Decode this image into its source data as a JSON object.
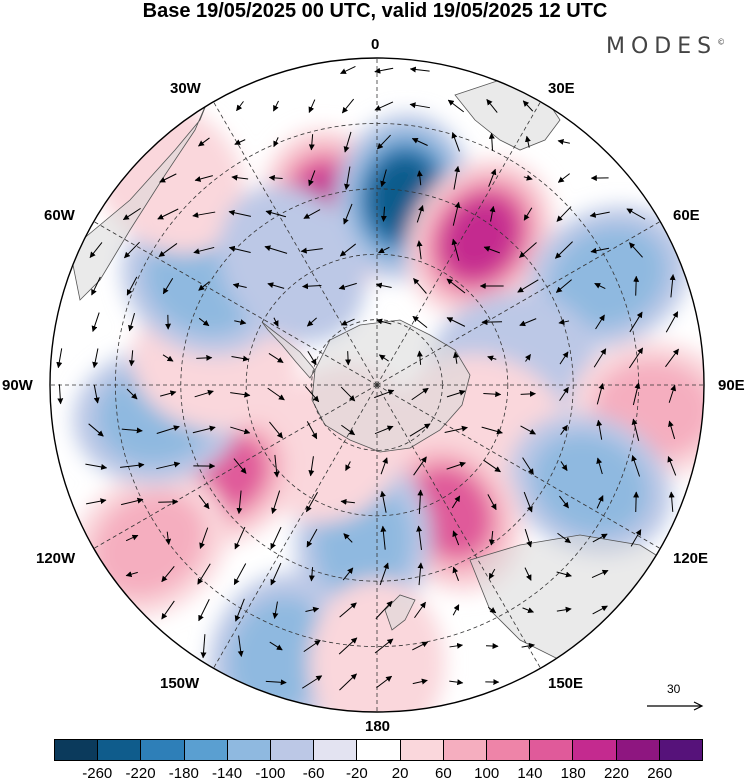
{
  "title": "Base 19/05/2025 00 UTC, valid 19/05/2025 12 UTC",
  "brand": "MODES",
  "brand_mark": "©",
  "longitude_labels": {
    "n0": "0",
    "w30": "30W",
    "e30": "30E",
    "w60": "60W",
    "e60": "60E",
    "w90": "90W",
    "e90": "90E",
    "w120": "120W",
    "e120": "120E",
    "w150": "150W",
    "e150": "150E",
    "s180": "180"
  },
  "reference_vector": "30",
  "colorbar": {
    "colors": [
      "#0b3a5c",
      "#0f5c8c",
      "#2e7fb8",
      "#5a9fd1",
      "#8fb9e0",
      "#bcc8e6",
      "#e3e3f1",
      "#ffffff",
      "#fad7dc",
      "#f5aebf",
      "#ee84a8",
      "#e05a9a",
      "#c42a8f",
      "#8e1680",
      "#56127a"
    ],
    "tick_labels": [
      "-260",
      "-220",
      "-180",
      "-140",
      "-100",
      "-60",
      "-20",
      "20",
      "60",
      "100",
      "140",
      "180",
      "220",
      "260"
    ]
  },
  "map_features": {
    "projection": "south polar stereographic",
    "graticule": "dashed",
    "blobs": [
      {
        "lon": 345,
        "r": 0.55,
        "value": 240
      },
      {
        "lon": 8,
        "r": 0.58,
        "value": -260
      },
      {
        "lon": 35,
        "r": 0.55,
        "value": 250
      },
      {
        "lon": 65,
        "r": 0.78,
        "value": -140
      },
      {
        "lon": 80,
        "r": 0.42,
        "value": -80
      },
      {
        "lon": 95,
        "r": 0.85,
        "value": 100
      },
      {
        "lon": 110,
        "r": 0.35,
        "value": 80
      },
      {
        "lon": 115,
        "r": 0.72,
        "value": -110
      },
      {
        "lon": 150,
        "r": 0.45,
        "value": 210
      },
      {
        "lon": 185,
        "r": 0.48,
        "value": -150
      },
      {
        "lon": 200,
        "r": 0.88,
        "value": -150
      },
      {
        "lon": 180,
        "r": 0.85,
        "value": 80
      },
      {
        "lon": 215,
        "r": 0.22,
        "value": 80
      },
      {
        "lon": 240,
        "r": 0.55,
        "value": 170
      },
      {
        "lon": 235,
        "r": 0.85,
        "value": 150
      },
      {
        "lon": 262,
        "r": 0.68,
        "value": -130
      },
      {
        "lon": 278,
        "r": 0.5,
        "value": 80
      },
      {
        "lon": 300,
        "r": 0.62,
        "value": -110
      },
      {
        "lon": 315,
        "r": 0.9,
        "value": 60
      },
      {
        "lon": 325,
        "r": 0.45,
        "value": -50
      }
    ]
  }
}
